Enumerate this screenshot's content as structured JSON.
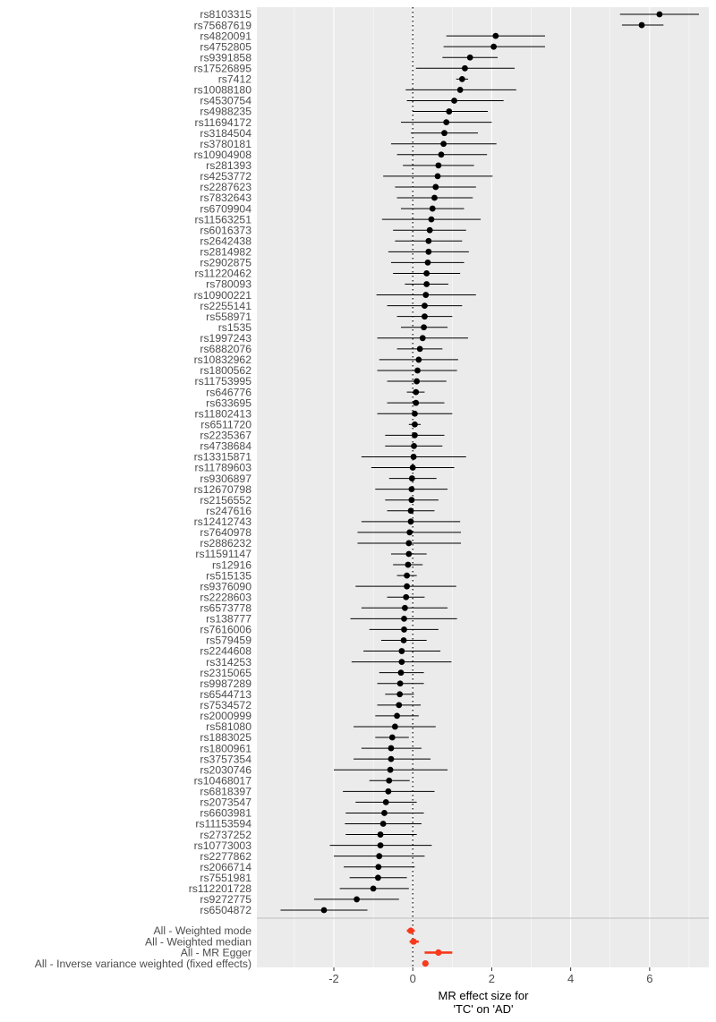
{
  "chart_data": {
    "type": "forest",
    "xlabel": [
      "MR effect size for",
      "'TC' on 'AD'"
    ],
    "xticks": [
      -2,
      0,
      2,
      4,
      6
    ],
    "xlim": [
      -3.95,
      7.5
    ],
    "reference_line_x": 0,
    "grid": true,
    "colors": {
      "panel": "#ebebeb",
      "grid": "#ffffff",
      "snp_point": "#000000",
      "method_point": "#f8391b",
      "separator": "#bdbdbd"
    },
    "snps": [
      {
        "label": "rs8103315",
        "b": 6.25,
        "lo": 5.25,
        "hi": 7.25
      },
      {
        "label": "rs75687619",
        "b": 5.8,
        "lo": 5.3,
        "hi": 6.35
      },
      {
        "label": "rs4820091",
        "b": 2.1,
        "lo": 0.85,
        "hi": 3.35
      },
      {
        "label": "rs4752805",
        "b": 2.05,
        "lo": 0.78,
        "hi": 3.35
      },
      {
        "label": "rs9391858",
        "b": 1.45,
        "lo": 0.75,
        "hi": 2.15
      },
      {
        "label": "rs17526895",
        "b": 1.32,
        "lo": 0.08,
        "hi": 2.58
      },
      {
        "label": "rs7412",
        "b": 1.25,
        "lo": 1.1,
        "hi": 1.4
      },
      {
        "label": "rs10088180",
        "b": 1.2,
        "lo": -0.18,
        "hi": 2.62
      },
      {
        "label": "rs4530754",
        "b": 1.05,
        "lo": -0.15,
        "hi": 2.3
      },
      {
        "label": "rs4988235",
        "b": 0.92,
        "lo": 0.0,
        "hi": 1.9
      },
      {
        "label": "rs11694172",
        "b": 0.85,
        "lo": -0.3,
        "hi": 2.0
      },
      {
        "label": "rs3184504",
        "b": 0.8,
        "lo": -0.05,
        "hi": 1.65
      },
      {
        "label": "rs3780181",
        "b": 0.78,
        "lo": -0.55,
        "hi": 2.12
      },
      {
        "label": "rs10904908",
        "b": 0.72,
        "lo": -0.4,
        "hi": 1.88
      },
      {
        "label": "rs281393",
        "b": 0.65,
        "lo": -0.25,
        "hi": 1.55
      },
      {
        "label": "rs4253772",
        "b": 0.63,
        "lo": -0.75,
        "hi": 2.02
      },
      {
        "label": "rs2287623",
        "b": 0.58,
        "lo": -0.45,
        "hi": 1.6
      },
      {
        "label": "rs7832643",
        "b": 0.55,
        "lo": -0.4,
        "hi": 1.52
      },
      {
        "label": "rs6709904",
        "b": 0.5,
        "lo": -0.3,
        "hi": 1.3
      },
      {
        "label": "rs11563251",
        "b": 0.47,
        "lo": -0.78,
        "hi": 1.72
      },
      {
        "label": "rs6016373",
        "b": 0.43,
        "lo": -0.5,
        "hi": 1.35
      },
      {
        "label": "rs2642438",
        "b": 0.4,
        "lo": -0.45,
        "hi": 1.25
      },
      {
        "label": "rs2814982",
        "b": 0.4,
        "lo": -0.62,
        "hi": 1.42
      },
      {
        "label": "rs2902875",
        "b": 0.38,
        "lo": -0.55,
        "hi": 1.3
      },
      {
        "label": "rs11220462",
        "b": 0.35,
        "lo": -0.5,
        "hi": 1.2
      },
      {
        "label": "rs780093",
        "b": 0.35,
        "lo": -0.2,
        "hi": 0.9
      },
      {
        "label": "rs10900221",
        "b": 0.33,
        "lo": -0.92,
        "hi": 1.6
      },
      {
        "label": "rs2255141",
        "b": 0.3,
        "lo": -0.65,
        "hi": 1.25
      },
      {
        "label": "rs558971",
        "b": 0.3,
        "lo": -0.4,
        "hi": 1.0
      },
      {
        "label": "rs1535",
        "b": 0.28,
        "lo": -0.3,
        "hi": 0.88
      },
      {
        "label": "rs1997243",
        "b": 0.25,
        "lo": -0.9,
        "hi": 1.4
      },
      {
        "label": "rs6882076",
        "b": 0.18,
        "lo": -0.4,
        "hi": 0.75
      },
      {
        "label": "rs10832962",
        "b": 0.15,
        "lo": -0.85,
        "hi": 1.15
      },
      {
        "label": "rs1800562",
        "b": 0.12,
        "lo": -0.9,
        "hi": 1.12
      },
      {
        "label": "rs11753995",
        "b": 0.1,
        "lo": -0.65,
        "hi": 0.85
      },
      {
        "label": "rs646776",
        "b": 0.08,
        "lo": -0.15,
        "hi": 0.3
      },
      {
        "label": "rs633695",
        "b": 0.08,
        "lo": -0.65,
        "hi": 0.8
      },
      {
        "label": "rs11802413",
        "b": 0.05,
        "lo": -0.9,
        "hi": 1.0
      },
      {
        "label": "rs6511720",
        "b": 0.05,
        "lo": -0.1,
        "hi": 0.2
      },
      {
        "label": "rs2235367",
        "b": 0.05,
        "lo": -0.7,
        "hi": 0.8
      },
      {
        "label": "rs4738684",
        "b": 0.03,
        "lo": -0.7,
        "hi": 0.75
      },
      {
        "label": "rs13315871",
        "b": 0.02,
        "lo": -1.3,
        "hi": 1.35
      },
      {
        "label": "rs11789603",
        "b": 0.0,
        "lo": -1.05,
        "hi": 1.05
      },
      {
        "label": "rs9306897",
        "b": -0.02,
        "lo": -0.6,
        "hi": 0.6
      },
      {
        "label": "rs12670798",
        "b": -0.03,
        "lo": -0.95,
        "hi": 0.88
      },
      {
        "label": "rs2156552",
        "b": -0.03,
        "lo": -0.7,
        "hi": 0.65
      },
      {
        "label": "rs247616",
        "b": -0.05,
        "lo": -0.65,
        "hi": 0.55
      },
      {
        "label": "rs12412743",
        "b": -0.05,
        "lo": -1.3,
        "hi": 1.2
      },
      {
        "label": "rs7640978",
        "b": -0.08,
        "lo": -1.4,
        "hi": 1.22
      },
      {
        "label": "rs2886232",
        "b": -0.1,
        "lo": -1.4,
        "hi": 1.22
      },
      {
        "label": "rs11591147",
        "b": -0.1,
        "lo": -0.55,
        "hi": 0.35
      },
      {
        "label": "rs12916",
        "b": -0.12,
        "lo": -0.5,
        "hi": 0.25
      },
      {
        "label": "rs515135",
        "b": -0.15,
        "lo": -0.4,
        "hi": 0.1
      },
      {
        "label": "rs9376090",
        "b": -0.15,
        "lo": -1.45,
        "hi": 1.1
      },
      {
        "label": "rs2228603",
        "b": -0.17,
        "lo": -0.65,
        "hi": 0.3
      },
      {
        "label": "rs6573778",
        "b": -0.2,
        "lo": -1.3,
        "hi": 0.88
      },
      {
        "label": "rs138777",
        "b": -0.22,
        "lo": -1.58,
        "hi": 1.12
      },
      {
        "label": "rs7616006",
        "b": -0.22,
        "lo": -1.1,
        "hi": 0.65
      },
      {
        "label": "rs579459",
        "b": -0.23,
        "lo": -0.8,
        "hi": 0.35
      },
      {
        "label": "rs2244608",
        "b": -0.28,
        "lo": -1.25,
        "hi": 0.7
      },
      {
        "label": "rs314253",
        "b": -0.28,
        "lo": -1.55,
        "hi": 0.98
      },
      {
        "label": "rs2315065",
        "b": -0.3,
        "lo": -0.85,
        "hi": 0.28
      },
      {
        "label": "rs9987289",
        "b": -0.32,
        "lo": -0.9,
        "hi": 0.28
      },
      {
        "label": "rs6544713",
        "b": -0.33,
        "lo": -0.7,
        "hi": 0.03
      },
      {
        "label": "rs7534572",
        "b": -0.35,
        "lo": -0.9,
        "hi": 0.2
      },
      {
        "label": "rs2000999",
        "b": -0.4,
        "lo": -0.95,
        "hi": 0.15
      },
      {
        "label": "rs581080",
        "b": -0.45,
        "lo": -1.5,
        "hi": 0.58
      },
      {
        "label": "rs1883025",
        "b": -0.52,
        "lo": -0.95,
        "hi": -0.1
      },
      {
        "label": "rs1800961",
        "b": -0.55,
        "lo": -1.3,
        "hi": 0.22
      },
      {
        "label": "rs3757354",
        "b": -0.55,
        "lo": -1.5,
        "hi": 0.45
      },
      {
        "label": "rs2030746",
        "b": -0.57,
        "lo": -2.0,
        "hi": 0.88
      },
      {
        "label": "rs10468017",
        "b": -0.6,
        "lo": -1.1,
        "hi": -0.08
      },
      {
        "label": "rs6818397",
        "b": -0.62,
        "lo": -1.77,
        "hi": 0.55
      },
      {
        "label": "rs2073547",
        "b": -0.68,
        "lo": -1.45,
        "hi": 0.1
      },
      {
        "label": "rs6603981",
        "b": -0.72,
        "lo": -1.7,
        "hi": 0.28
      },
      {
        "label": "rs11153594",
        "b": -0.75,
        "lo": -1.72,
        "hi": 0.22
      },
      {
        "label": "rs2737252",
        "b": -0.82,
        "lo": -1.7,
        "hi": 0.1
      },
      {
        "label": "rs10773003",
        "b": -0.82,
        "lo": -2.1,
        "hi": 0.48
      },
      {
        "label": "rs2277862",
        "b": -0.85,
        "lo": -2.0,
        "hi": 0.3
      },
      {
        "label": "rs2066714",
        "b": -0.87,
        "lo": -1.75,
        "hi": 0.05
      },
      {
        "label": "rs7551981",
        "b": -0.88,
        "lo": -1.6,
        "hi": -0.15
      },
      {
        "label": "rs112201728",
        "b": -1.0,
        "lo": -1.85,
        "hi": -0.1
      },
      {
        "label": "rs9272775",
        "b": -1.42,
        "lo": -2.5,
        "hi": -0.35
      },
      {
        "label": "rs6504872",
        "b": -2.25,
        "lo": -3.35,
        "hi": -1.15
      }
    ],
    "methods": [
      {
        "label": "All - Weighted mode",
        "b": -0.05,
        "lo": -0.15,
        "hi": 0.05
      },
      {
        "label": "All - Weighted median",
        "b": 0.02,
        "lo": -0.08,
        "hi": 0.15
      },
      {
        "label": "All - MR Egger",
        "b": 0.65,
        "lo": 0.3,
        "hi": 1.0
      },
      {
        "label": "All - Inverse variance weighted (fixed effects)",
        "b": 0.32,
        "lo": 0.27,
        "hi": 0.37
      }
    ]
  }
}
